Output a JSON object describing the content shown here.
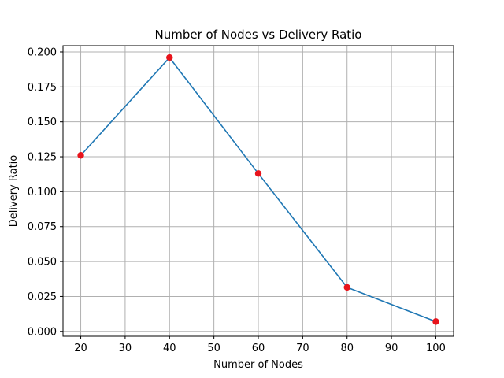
{
  "chart_data": {
    "type": "line",
    "title": "Number of Nodes vs Delivery Ratio",
    "xlabel": "Number of Nodes",
    "ylabel": "Delivery Ratio",
    "x": [
      20,
      40,
      60,
      80,
      100
    ],
    "series": [
      {
        "values": [
          0.126,
          0.196,
          0.113,
          0.0315,
          0.007
        ],
        "line_color": "#1f77b4",
        "marker_color": "#e8141c"
      }
    ],
    "xlim": [
      16,
      104
    ],
    "ylim": [
      -0.0035,
      0.2045
    ],
    "xticks": [
      20,
      30,
      40,
      50,
      60,
      70,
      80,
      90,
      100
    ],
    "xtick_labels": [
      "20",
      "30",
      "40",
      "50",
      "60",
      "70",
      "80",
      "90",
      "100"
    ],
    "yticks": [
      0.0,
      0.025,
      0.05,
      0.075,
      0.1,
      0.125,
      0.15,
      0.175,
      0.2
    ],
    "ytick_labels": [
      "0.000",
      "0.025",
      "0.050",
      "0.075",
      "0.100",
      "0.125",
      "0.150",
      "0.175",
      "0.200"
    ],
    "grid": true,
    "grid_color": "#b0b0b0"
  }
}
